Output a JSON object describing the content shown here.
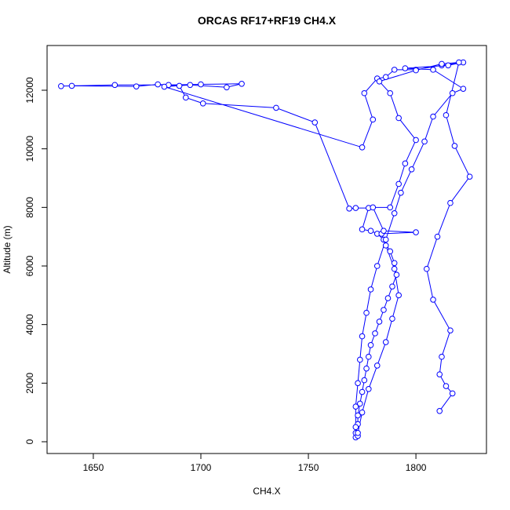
{
  "chart_data": {
    "type": "line",
    "title": "ORCAS RF17+RF19 CH4.X",
    "x_label": "CH4.X",
    "y_label": "Altitude (m)",
    "xlim": [
      1628.5,
      1832.8
    ],
    "ylim": [
      -402,
      13527
    ],
    "xticks": [
      1650,
      1700,
      1750,
      1800
    ],
    "yticks": [
      0,
      2000,
      4000,
      6000,
      8000,
      10000,
      12000
    ],
    "markers": true,
    "grid": false,
    "x": [
      1772,
      1772,
      1773,
      1773,
      1774,
      1775,
      1776,
      1777,
      1778,
      1779,
      1781,
      1783,
      1785,
      1787,
      1789,
      1791,
      1790,
      1788,
      1785,
      1782,
      1779,
      1775,
      1778,
      1772,
      1769,
      1753,
      1735,
      1701,
      1693,
      1690,
      1680,
      1670,
      1640,
      1635,
      1660,
      1685,
      1700,
      1719,
      1712,
      1695,
      1683,
      1775,
      1780,
      1776,
      1782,
      1786,
      1790,
      1800,
      1812,
      1822,
      1815,
      1795,
      1808,
      1822,
      1817,
      1808,
      1804,
      1798,
      1793,
      1790,
      1786,
      1782,
      1779,
      1777,
      1775,
      1774,
      1773,
      1772,
      1772,
      1773,
      1773,
      1775,
      1778,
      1782,
      1786,
      1789,
      1792,
      1790,
      1786,
      1784,
      1800,
      1785,
      1780,
      1788,
      1792,
      1795,
      1800,
      1792,
      1788,
      1783,
      1800,
      1812,
      1820,
      1814,
      1818,
      1825,
      1816,
      1810,
      1805,
      1808,
      1816,
      1812,
      1811,
      1814,
      1817,
      1811
    ],
    "series": [
      {
        "color": "#0000ff",
        "values": [
          150,
          300,
          600,
          900,
          1300,
          1700,
          2100,
          2500,
          2900,
          3300,
          3700,
          4100,
          4500,
          4900,
          5300,
          5700,
          6100,
          6500,
          6900,
          7100,
          7200,
          7250,
          7980,
          7980,
          7960,
          10900,
          11400,
          11550,
          11750,
          12150,
          12200,
          12130,
          12150,
          12140,
          12180,
          12180,
          12200,
          12220,
          12100,
          12180,
          12120,
          10050,
          11000,
          11900,
          12400,
          12450,
          12700,
          12700,
          12850,
          12950,
          12850,
          12750,
          12700,
          12050,
          11900,
          11100,
          10250,
          9300,
          8500,
          7800,
          6900,
          6000,
          5200,
          4400,
          3600,
          2800,
          2000,
          1200,
          500,
          200,
          300,
          1000,
          1800,
          2600,
          3400,
          4200,
          5000,
          5900,
          6700,
          7100,
          7150,
          7200,
          8000,
          8000,
          8800,
          9500,
          10300,
          11050,
          11900,
          12300,
          12680,
          12900,
          12950,
          11150,
          10100,
          9050,
          8150,
          7000,
          5900,
          4850,
          3800,
          2900,
          2300,
          1900,
          1650,
          1050
        ]
      }
    ]
  }
}
